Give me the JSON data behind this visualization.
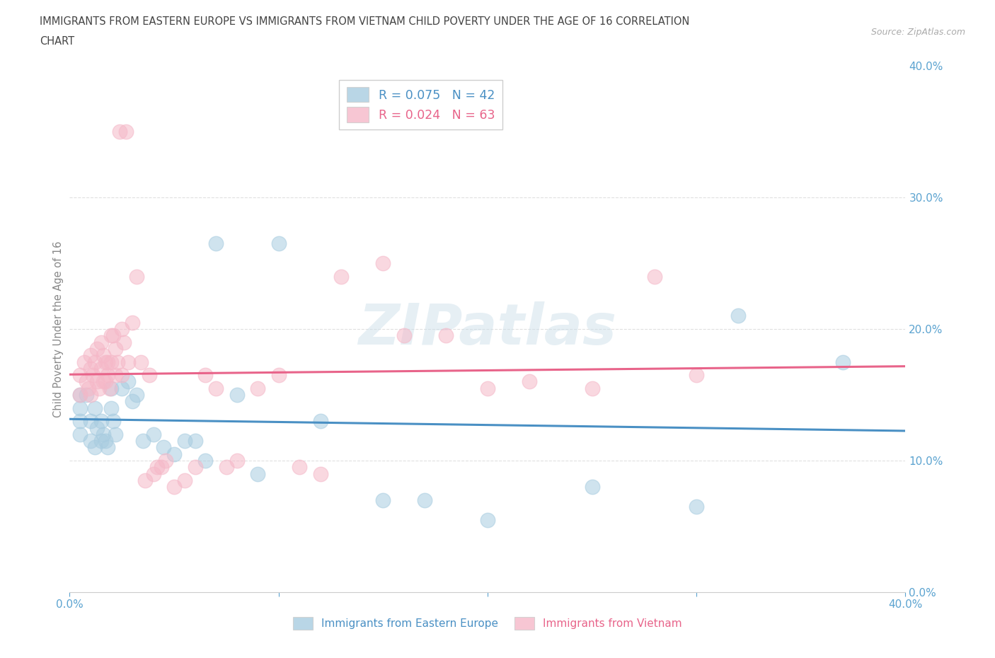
{
  "title_line1": "IMMIGRANTS FROM EASTERN EUROPE VS IMMIGRANTS FROM VIETNAM CHILD POVERTY UNDER THE AGE OF 16 CORRELATION",
  "title_line2": "CHART",
  "source": "Source: ZipAtlas.com",
  "ylabel": "Child Poverty Under the Age of 16",
  "xlim": [
    0.0,
    0.4
  ],
  "ylim": [
    0.0,
    0.4
  ],
  "xticks": [
    0.0,
    0.1,
    0.2,
    0.3,
    0.4
  ],
  "yticks": [
    0.0,
    0.1,
    0.2,
    0.3,
    0.4
  ],
  "xtick_labels": [
    "0.0%",
    "",
    "",
    "",
    "40.0%"
  ],
  "ytick_labels_right": [
    "0.0%",
    "10.0%",
    "20.0%",
    "30.0%",
    "40.0%"
  ],
  "blue_color": "#a8cce0",
  "pink_color": "#f5b8c8",
  "blue_line_color": "#4a90c4",
  "pink_line_color": "#e8648a",
  "R_blue": 0.075,
  "N_blue": 42,
  "R_pink": 0.024,
  "N_pink": 63,
  "legend_label_blue": "Immigrants from Eastern Europe",
  "legend_label_pink": "Immigrants from Vietnam",
  "watermark": "ZIPatlas",
  "blue_x": [
    0.005,
    0.005,
    0.005,
    0.005,
    0.008,
    0.01,
    0.01,
    0.012,
    0.012,
    0.013,
    0.015,
    0.015,
    0.016,
    0.017,
    0.018,
    0.02,
    0.02,
    0.021,
    0.022,
    0.025,
    0.028,
    0.03,
    0.032,
    0.035,
    0.04,
    0.045,
    0.05,
    0.055,
    0.06,
    0.065,
    0.07,
    0.08,
    0.09,
    0.1,
    0.12,
    0.15,
    0.17,
    0.2,
    0.25,
    0.3,
    0.32,
    0.37
  ],
  "blue_y": [
    0.15,
    0.14,
    0.13,
    0.12,
    0.15,
    0.13,
    0.115,
    0.14,
    0.11,
    0.125,
    0.115,
    0.13,
    0.12,
    0.115,
    0.11,
    0.155,
    0.14,
    0.13,
    0.12,
    0.155,
    0.16,
    0.145,
    0.15,
    0.115,
    0.12,
    0.11,
    0.105,
    0.115,
    0.115,
    0.1,
    0.265,
    0.15,
    0.09,
    0.265,
    0.13,
    0.07,
    0.07,
    0.055,
    0.08,
    0.065,
    0.21,
    0.175
  ],
  "pink_x": [
    0.005,
    0.005,
    0.007,
    0.008,
    0.009,
    0.01,
    0.01,
    0.01,
    0.011,
    0.012,
    0.013,
    0.013,
    0.014,
    0.015,
    0.015,
    0.016,
    0.016,
    0.017,
    0.017,
    0.018,
    0.018,
    0.019,
    0.02,
    0.02,
    0.021,
    0.022,
    0.022,
    0.023,
    0.024,
    0.025,
    0.025,
    0.026,
    0.027,
    0.028,
    0.03,
    0.032,
    0.034,
    0.036,
    0.038,
    0.04,
    0.042,
    0.044,
    0.046,
    0.05,
    0.055,
    0.06,
    0.065,
    0.07,
    0.075,
    0.08,
    0.09,
    0.1,
    0.11,
    0.12,
    0.13,
    0.15,
    0.16,
    0.18,
    0.2,
    0.22,
    0.25,
    0.28,
    0.3
  ],
  "pink_y": [
    0.15,
    0.165,
    0.175,
    0.16,
    0.155,
    0.18,
    0.17,
    0.15,
    0.165,
    0.175,
    0.185,
    0.16,
    0.155,
    0.19,
    0.17,
    0.18,
    0.16,
    0.175,
    0.16,
    0.165,
    0.175,
    0.155,
    0.195,
    0.175,
    0.195,
    0.185,
    0.165,
    0.175,
    0.35,
    0.2,
    0.165,
    0.19,
    0.35,
    0.175,
    0.205,
    0.24,
    0.175,
    0.085,
    0.165,
    0.09,
    0.095,
    0.095,
    0.1,
    0.08,
    0.085,
    0.095,
    0.165,
    0.155,
    0.095,
    0.1,
    0.155,
    0.165,
    0.095,
    0.09,
    0.24,
    0.25,
    0.195,
    0.195,
    0.155,
    0.16,
    0.155,
    0.24,
    0.165
  ],
  "background_color": "#ffffff",
  "grid_color": "#e0e0e0",
  "title_color": "#444444",
  "tick_color": "#5ba3d0",
  "source_color": "#aaaaaa"
}
